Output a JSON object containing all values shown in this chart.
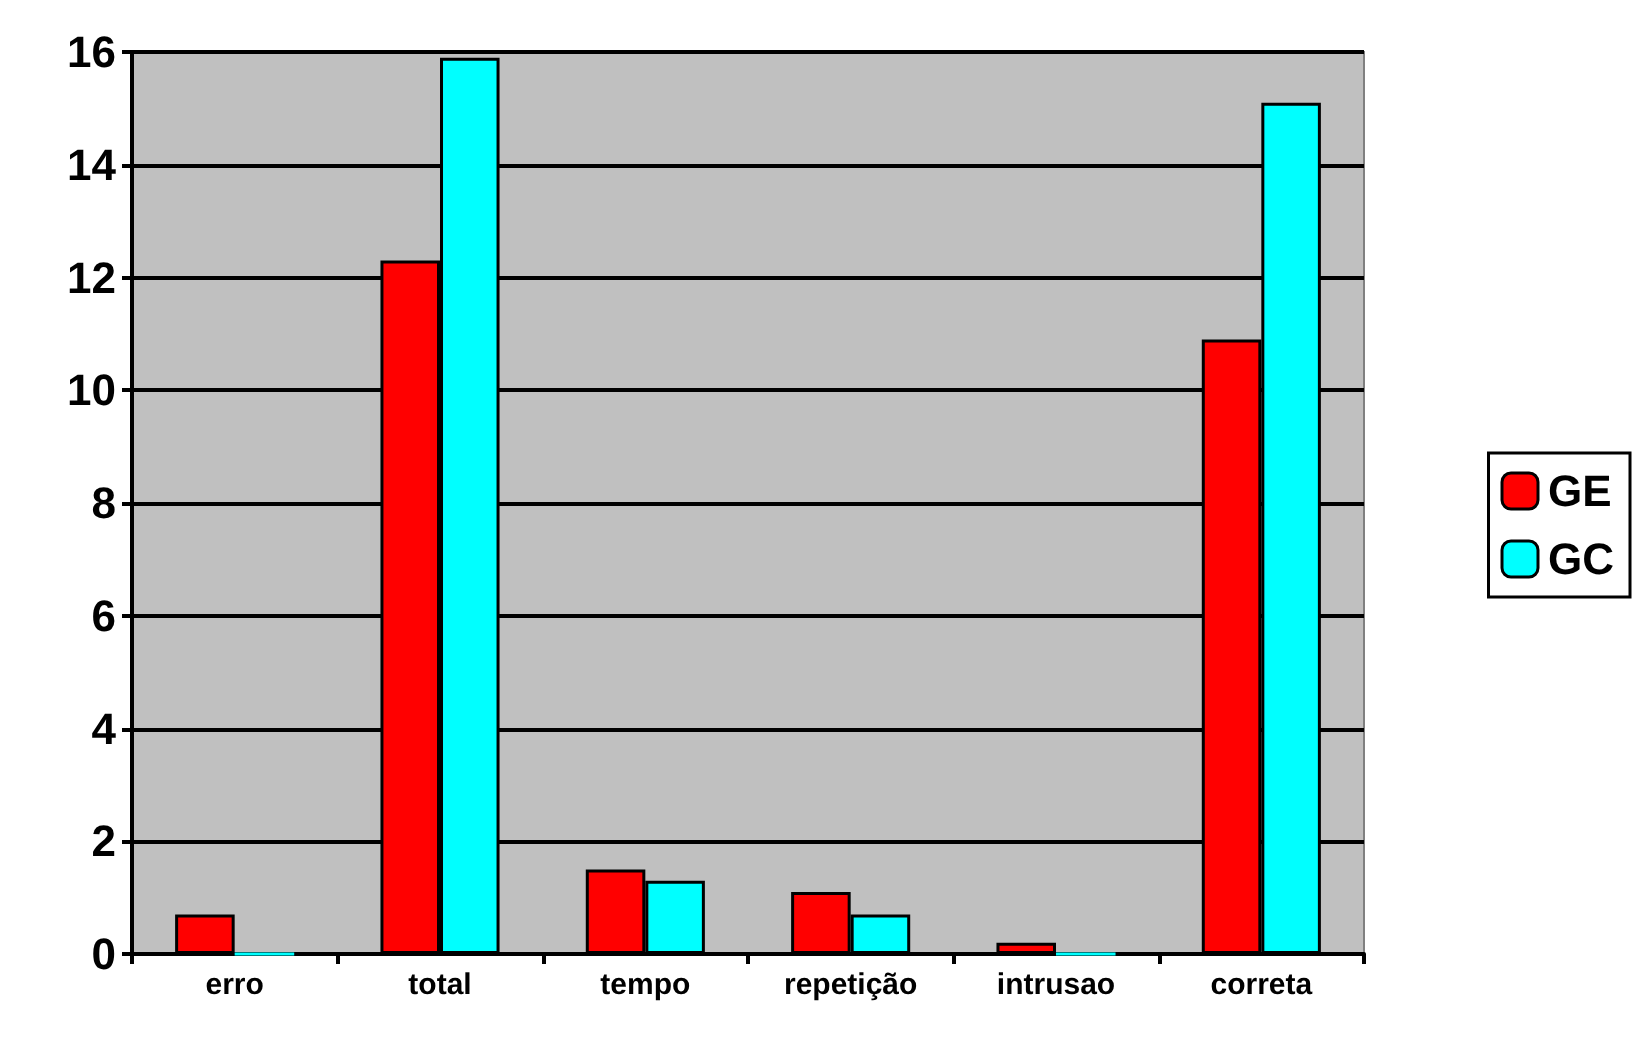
{
  "chart_data": {
    "type": "bar",
    "categories": [
      "erro",
      "total",
      "tempo",
      "repetição",
      "intrusao",
      "correta"
    ],
    "series": [
      {
        "name": "GE",
        "color": "#ff0000",
        "values": [
          0.7,
          12.3,
          1.5,
          1.1,
          0.2,
          10.9
        ]
      },
      {
        "name": "GC",
        "color": "#00ffff",
        "values": [
          0,
          15.9,
          1.3,
          0.7,
          0,
          15.1
        ]
      }
    ],
    "ylim": [
      0,
      16
    ],
    "yticks": [
      0,
      2,
      4,
      6,
      8,
      10,
      12,
      14,
      16
    ],
    "grid": "y",
    "legend": "right"
  }
}
